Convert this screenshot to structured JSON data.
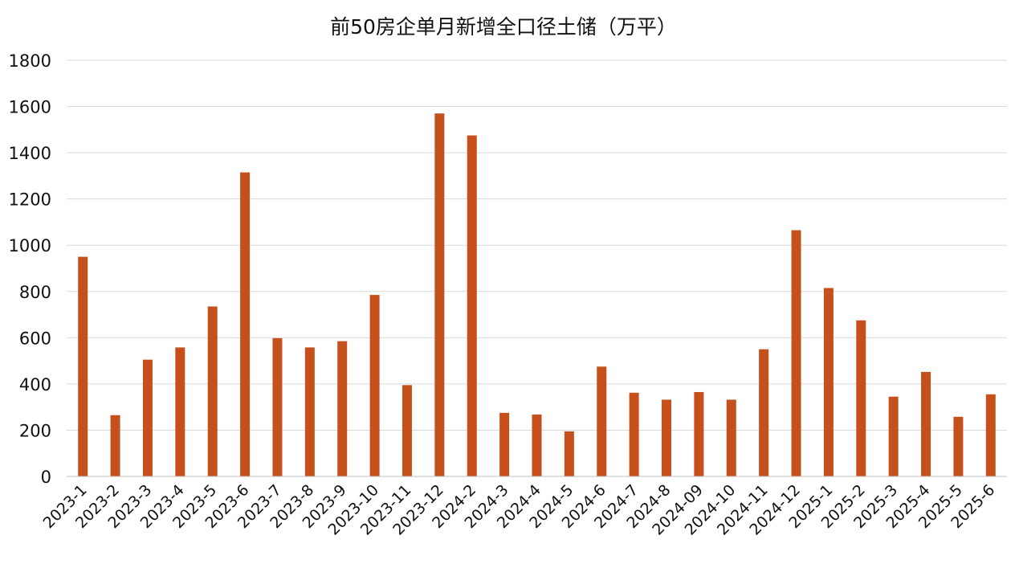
{
  "chart_data": {
    "type": "bar",
    "title": "前50房企单月新增全口径土储（万平）",
    "xlabel": "",
    "ylabel": "",
    "ylim": [
      0,
      1800
    ],
    "yticks": [
      0,
      200,
      400,
      600,
      800,
      1000,
      1200,
      1400,
      1600,
      1800
    ],
    "grid": true,
    "legend": "none",
    "bar_color": "#C5501C",
    "categories": [
      "2023-1",
      "2023-2",
      "2023-3",
      "2023-4",
      "2023-5",
      "2023-6",
      "2023-7",
      "2023-8",
      "2023-9",
      "2023-10",
      "2023-11",
      "2023-12",
      "2024-2",
      "2024-3",
      "2024-4",
      "2024-5",
      "2024-6",
      "2024-7",
      "2024-8",
      "2024-09",
      "2024-10",
      "2024-11",
      "2024-12",
      "2025-1",
      "2025-2",
      "2025-3",
      "2025-4",
      "2025-5",
      "2025-6"
    ],
    "values": [
      950,
      265,
      505,
      558,
      735,
      1315,
      598,
      558,
      585,
      785,
      395,
      1570,
      1475,
      275,
      268,
      195,
      475,
      362,
      332,
      365,
      332,
      550,
      1065,
      815,
      675,
      345,
      452,
      258,
      355
    ]
  }
}
